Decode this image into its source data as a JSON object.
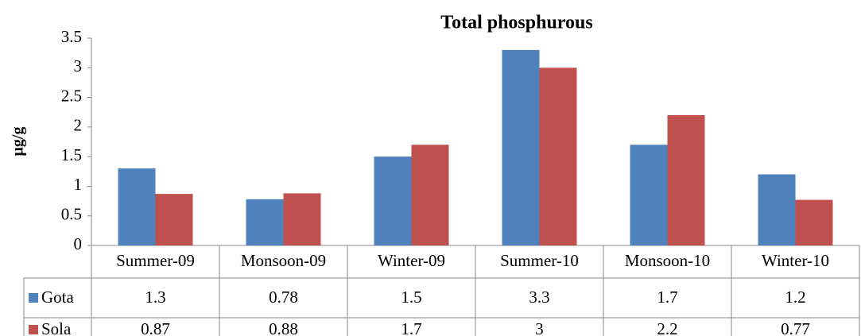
{
  "chart_data": {
    "type": "bar",
    "title": "Total phosphurous",
    "y_label": "μg/g",
    "categories": [
      "Summer-09",
      "Monsoon-09",
      "Winter-09",
      "Summer-10",
      "Monsoon-10",
      "Winter-10"
    ],
    "series": [
      {
        "name": "Gota",
        "color": "#4f81bd",
        "values": [
          1.3,
          0.78,
          1.5,
          3.3,
          1.7,
          1.2
        ]
      },
      {
        "name": "Sola",
        "color": "#c0504d",
        "values": [
          0.87,
          0.88,
          1.7,
          3,
          2.2,
          0.77
        ]
      }
    ],
    "ylim": [
      0,
      3.5
    ],
    "yticks": [
      0,
      0.5,
      1,
      1.5,
      2,
      2.5,
      3,
      3.5
    ],
    "grid": false,
    "data_table": true
  }
}
